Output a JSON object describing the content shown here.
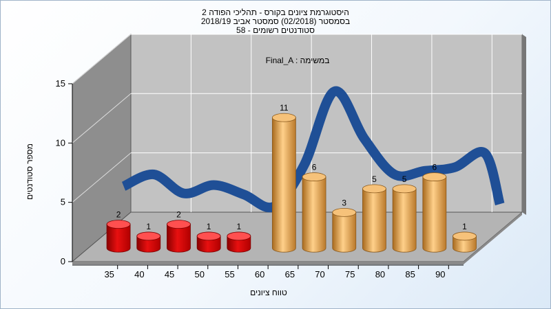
{
  "chart_data": {
    "type": "bar",
    "title_lines": [
      "היסטוגרמת ציונים בקורס - תהליכי הפודה 2",
      "בסמסטר  (02/2018)  סמסטר אביב 2018/19",
      "סטודנטים רשומים - 58"
    ],
    "legend_text": "Final_A : במשימה",
    "xlabel": "טווח ציונים",
    "ylabel": "מספר סטודנטים",
    "categories": [
      "35",
      "40",
      "45",
      "50",
      "55",
      "60",
      "65",
      "70",
      "75",
      "80",
      "85",
      "90"
    ],
    "values": [
      2,
      1,
      2,
      1,
      1,
      11,
      6,
      3,
      5,
      5,
      6,
      1
    ],
    "bar_positions": [
      35,
      40,
      45,
      50,
      55,
      62.5,
      67.5,
      72.5,
      77.5,
      82.5,
      87.5,
      92.5
    ],
    "value_labels": [
      "2",
      "1",
      "2",
      "1",
      "1",
      "11",
      "6",
      "3",
      "5",
      "5",
      "6",
      "1"
    ],
    "yticks": [
      "0",
      "5",
      "10",
      "15"
    ],
    "ylim": [
      0,
      15
    ],
    "xlim": [
      30,
      95
    ],
    "failing_threshold": 56,
    "curve": {
      "x": [
        32.5,
        37.5,
        42.5,
        47.5,
        52.5,
        57.5,
        62.5,
        67.5,
        72.5,
        77.5,
        82.5,
        87.5,
        92.5,
        95
      ],
      "y": [
        4,
        5,
        3.4,
        4.1,
        3.3,
        2.3,
        5.8,
        12.0,
        8.0,
        5.0,
        5.3,
        5.6,
        6.8,
        2.5
      ]
    },
    "colors": {
      "fail_bar": "#e81010",
      "pass_bar": "#e8a040",
      "curve": "#2e6fc4",
      "back_wall": "#c2c2c2",
      "side_wall": "#8e8e8e",
      "floor": "#b4b4b4"
    }
  }
}
